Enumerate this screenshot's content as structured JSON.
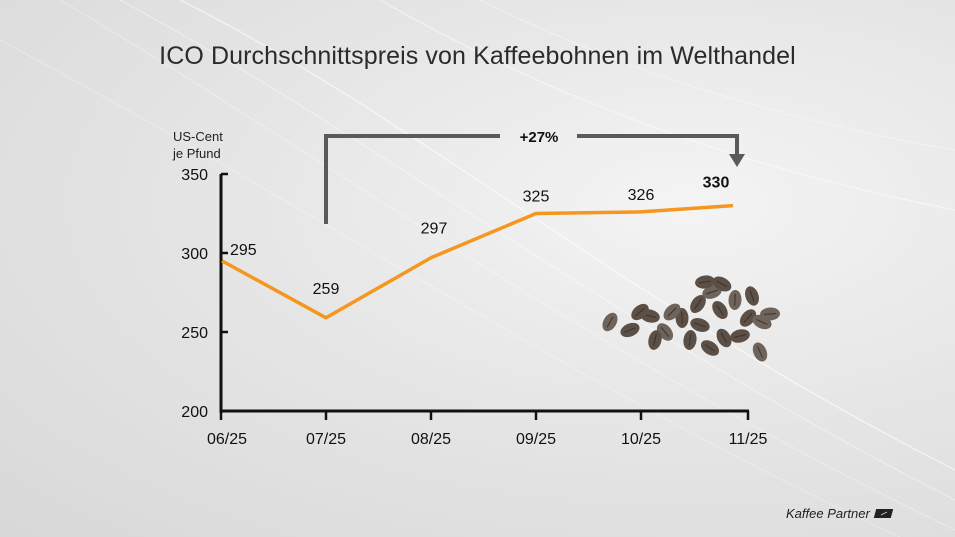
{
  "title": "ICO Durchschnittspreis von Kaffeebohnen im Welthandel",
  "brand": "Kaffee Partner",
  "brand_icon": "kaffee-partner-logo-icon",
  "accent_color": "#f5961e",
  "chart_data": {
    "type": "line",
    "title": "ICO Durchschnittspreis von Kaffeebohnen im Welthandel",
    "ylabel": "US-Cent je Pfund",
    "ylabel_lines": [
      "US-Cent",
      "je Pfund"
    ],
    "xlabel": "",
    "categories": [
      "06/25",
      "07/25",
      "08/25",
      "09/25",
      "10/25",
      "11/25"
    ],
    "values": [
      295,
      259,
      297,
      325,
      326,
      330
    ],
    "data_labels": [
      "295",
      "259",
      "297",
      "325",
      "326",
      "330"
    ],
    "ylim": [
      200,
      350
    ],
    "yticks": [
      200,
      250,
      300,
      350
    ],
    "ytick_labels": [
      "200",
      "250",
      "300",
      "350"
    ],
    "grid": false,
    "legend": "none",
    "line_color": "#f5961e",
    "highlight_last_label": true,
    "annotation": {
      "text": "+27%",
      "from_category": "07/25",
      "to_category": "11/25",
      "arrow_color": "#5a5a5a"
    },
    "decoration": "coffee-beans-image"
  }
}
